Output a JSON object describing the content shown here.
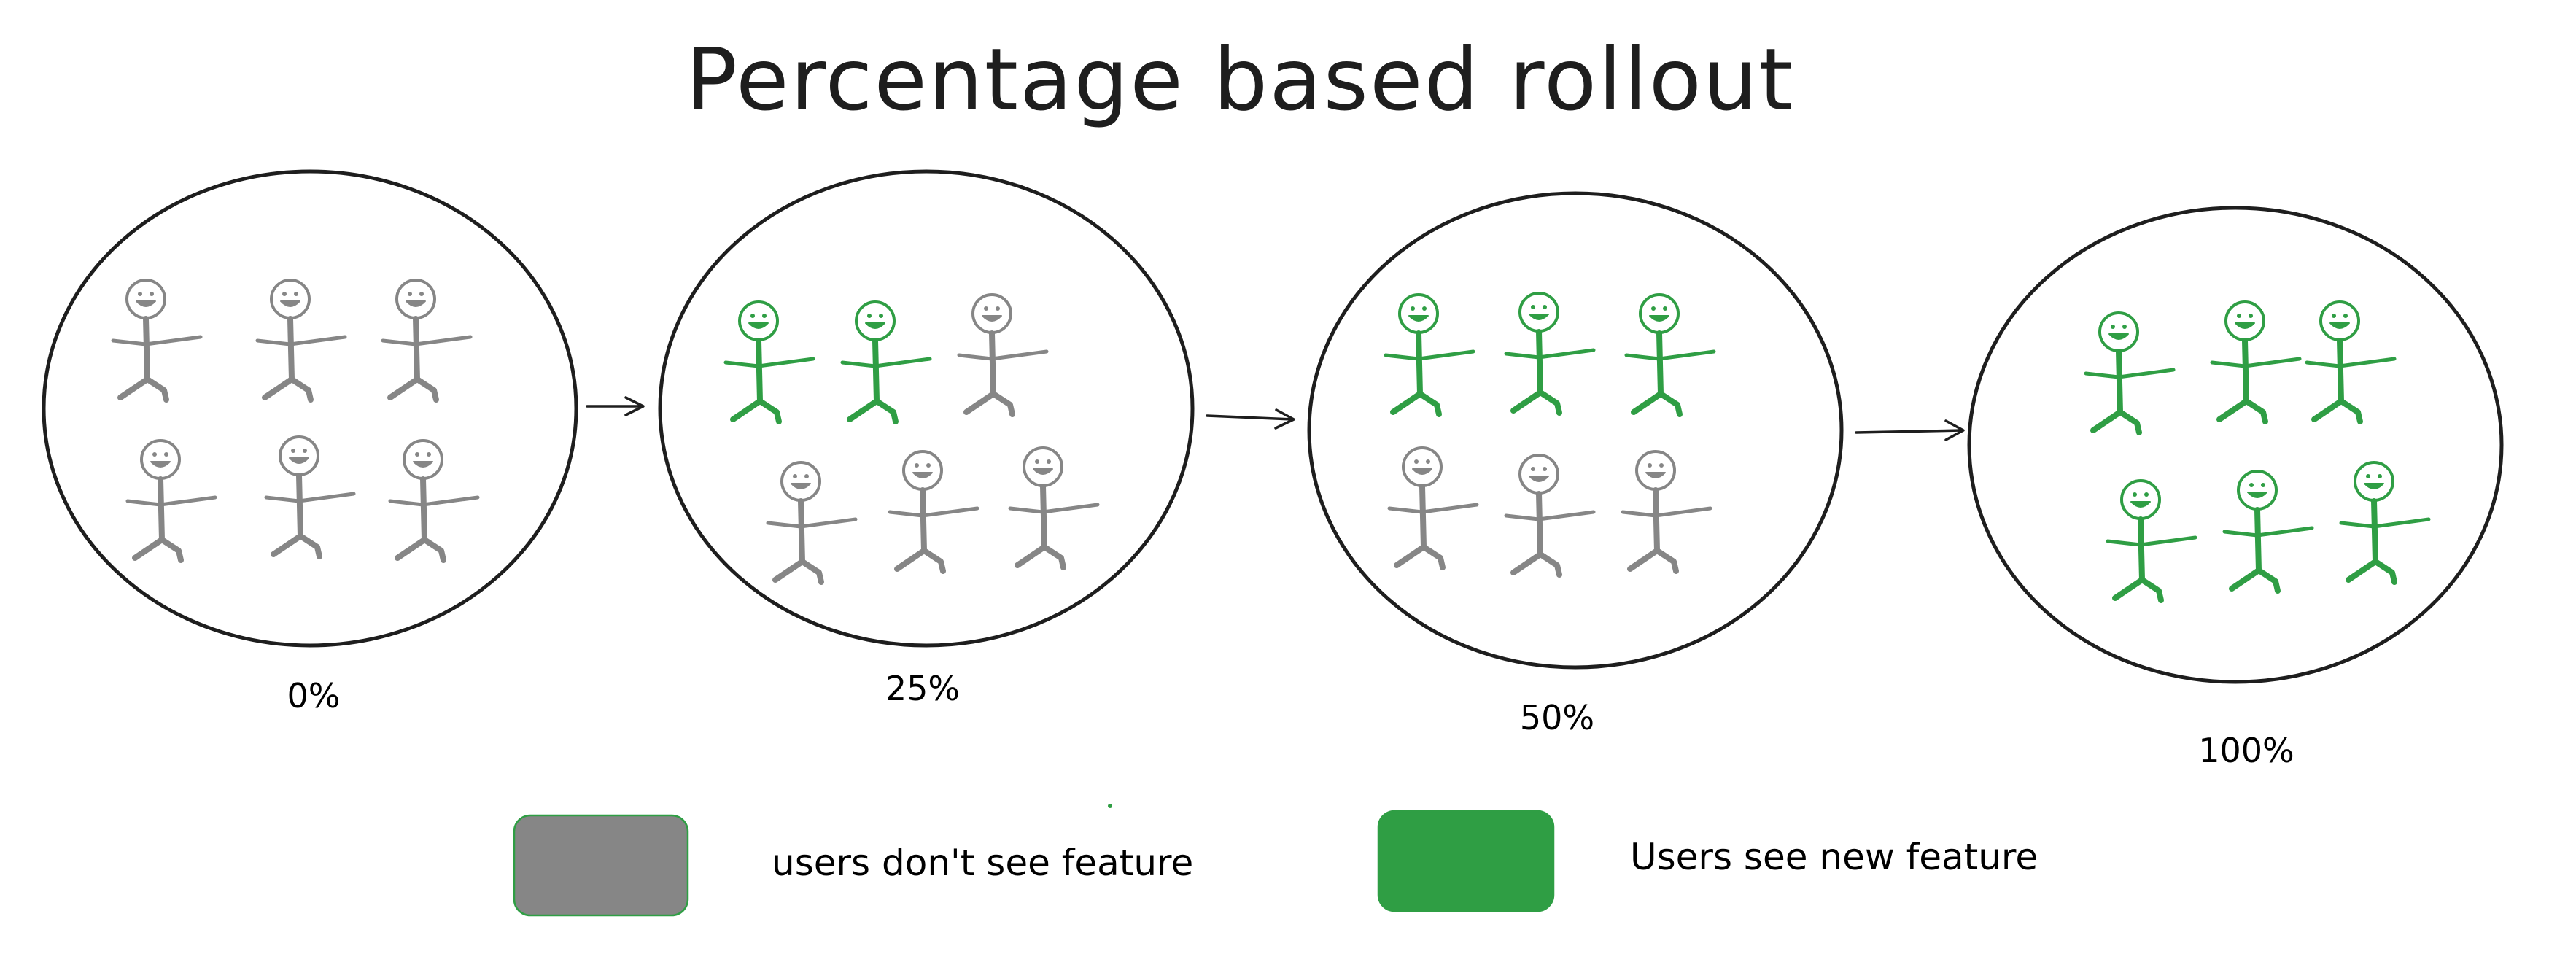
{
  "title": "Percentage based rollout",
  "stages": [
    {
      "label": "0%",
      "percent": 0,
      "green_users": 0,
      "total_users": 6
    },
    {
      "label": "25%",
      "percent": 25,
      "green_users": 2,
      "total_users": 6
    },
    {
      "label": "50%",
      "percent": 50,
      "green_users": 3,
      "total_users": 6
    },
    {
      "label": "100%",
      "percent": 100,
      "green_users": 6,
      "total_users": 6
    }
  ],
  "legend": [
    {
      "label": "users don't see feature",
      "color": "#868686"
    },
    {
      "label": "Users see new feature",
      "color": "#2f9e44"
    }
  ],
  "colors": {
    "grey_user": "#868686",
    "green_user": "#2f9e44",
    "outline": "#1e1e1e"
  }
}
